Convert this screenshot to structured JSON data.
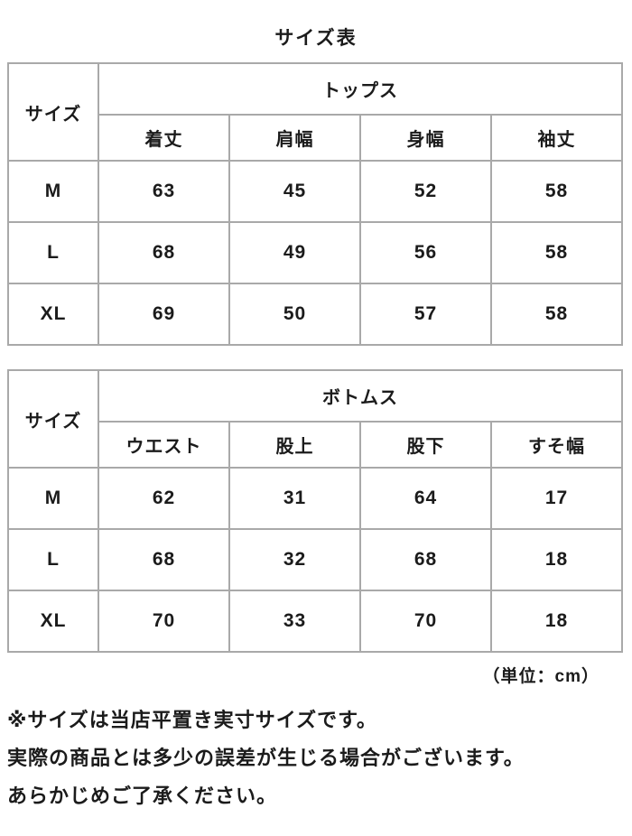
{
  "title": "サイズ表",
  "unit_note": "（単位：cm）",
  "tables": [
    {
      "corner_label": "サイズ",
      "group_label": "トップス",
      "columns": [
        "着丈",
        "肩幅",
        "身幅",
        "袖丈"
      ],
      "rows": [
        {
          "size": "M",
          "values": [
            63,
            45,
            52,
            58
          ]
        },
        {
          "size": "L",
          "values": [
            68,
            49,
            56,
            58
          ]
        },
        {
          "size": "XL",
          "values": [
            69,
            50,
            57,
            58
          ]
        }
      ]
    },
    {
      "corner_label": "サイズ",
      "group_label": "ボトムス",
      "columns": [
        "ウエスト",
        "股上",
        "股下",
        "すそ幅"
      ],
      "rows": [
        {
          "size": "M",
          "values": [
            62,
            31,
            64,
            17
          ]
        },
        {
          "size": "L",
          "values": [
            68,
            32,
            68,
            18
          ]
        },
        {
          "size": "XL",
          "values": [
            70,
            33,
            70,
            18
          ]
        }
      ]
    }
  ],
  "notes": [
    "※サイズは当店平置き実寸サイズです。",
    "実際の商品とは多少の誤差が生じる場合がございます。",
    "あらかじめご了承ください。"
  ]
}
